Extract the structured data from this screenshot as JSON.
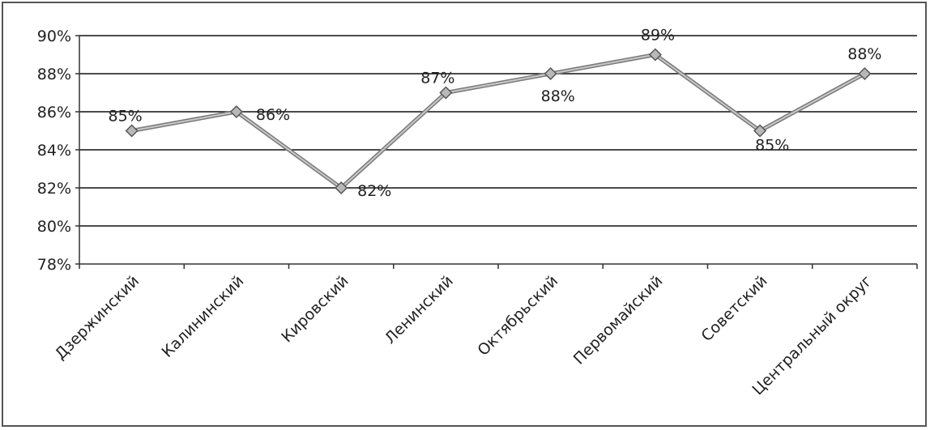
{
  "chart_data": {
    "type": "line",
    "title": "",
    "xlabel": "",
    "ylabel": "",
    "categories": [
      "Дзержинский",
      "Калининский",
      "Кировский",
      "Ленинский",
      "Октябрьский",
      "Первомайский",
      "Советский",
      "Центральный округ"
    ],
    "series": [
      {
        "values": [
          85,
          86,
          82,
          87,
          88,
          89,
          85,
          88
        ],
        "color": "#999999",
        "marker": "diamond"
      }
    ],
    "data_labels": [
      "85%",
      "86%",
      "82%",
      "87%",
      "88%",
      "89%",
      "85%",
      "88%"
    ],
    "ylim": [
      78,
      90
    ],
    "yticks": [
      78,
      80,
      82,
      84,
      86,
      88,
      90
    ],
    "ytick_labels": [
      "78%",
      "80%",
      "82%",
      "84%",
      "86%",
      "88%",
      "90%"
    ],
    "grid": true,
    "legend": "none"
  }
}
